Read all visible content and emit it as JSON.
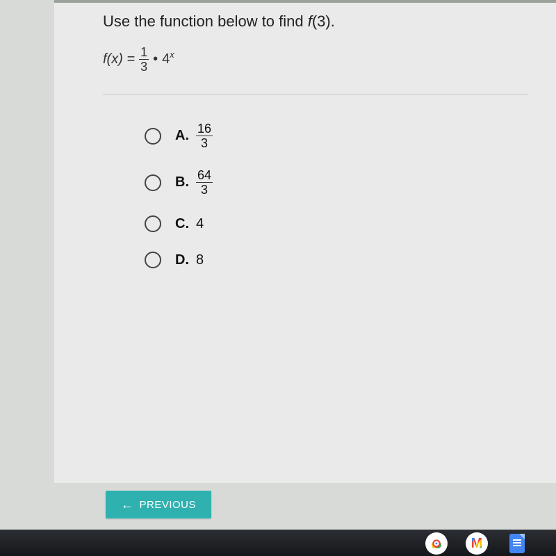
{
  "question": {
    "prompt_prefix": "Use the function below to find ",
    "prompt_fn": "f",
    "prompt_arg": "(3).",
    "formula_lhs": "f(x) =",
    "formula_frac_num": "1",
    "formula_frac_den": "3",
    "formula_dot": "•",
    "formula_base": "4",
    "formula_exp": "x"
  },
  "options": [
    {
      "letter": "A.",
      "type": "fraction",
      "num": "16",
      "den": "3"
    },
    {
      "letter": "B.",
      "type": "fraction",
      "num": "64",
      "den": "3"
    },
    {
      "letter": "C.",
      "type": "plain",
      "value": "4"
    },
    {
      "letter": "D.",
      "type": "plain",
      "value": "8"
    }
  ],
  "buttons": {
    "previous": "PREVIOUS"
  },
  "tray_icons": [
    "chrome",
    "gmail",
    "docs"
  ],
  "colors": {
    "paper_bg": "#e9eae9",
    "body_bg": "#d8dad8",
    "btn_bg": "#2fb1b0",
    "taskbar_bg": "#1a1c1f"
  }
}
